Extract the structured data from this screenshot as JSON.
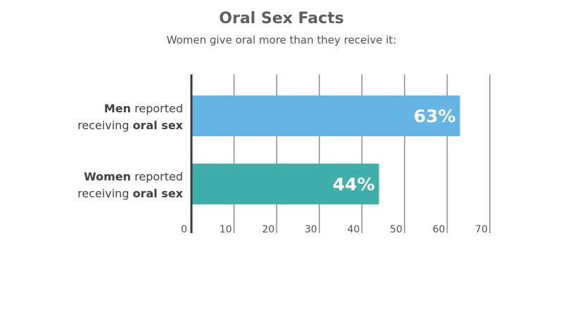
{
  "chart_data": {
    "type": "bar",
    "orientation": "horizontal",
    "title": "Oral Sex Facts",
    "subtitle": "Women give oral more than they receive it:",
    "categories": [
      {
        "segments": [
          {
            "text": "Men",
            "bold": true
          },
          {
            "text": " reported",
            "bold": false
          },
          {
            "text": "receiving ",
            "bold": false,
            "newline": true
          },
          {
            "text": "oral sex",
            "bold": true
          }
        ]
      },
      {
        "segments": [
          {
            "text": "Women",
            "bold": true
          },
          {
            "text": " reported",
            "bold": false
          },
          {
            "text": "receiving ",
            "bold": false,
            "newline": true
          },
          {
            "text": "oral sex",
            "bold": true
          }
        ]
      }
    ],
    "values": [
      63,
      44
    ],
    "value_labels": [
      "63%",
      "44%"
    ],
    "bar_colors": [
      "#64b5e3",
      "#3fafaa"
    ],
    "xlim": [
      0,
      70
    ],
    "xticks": [
      0,
      10,
      20,
      30,
      40,
      50,
      60,
      70
    ],
    "xtick_labels": [
      "0",
      "10",
      "20",
      "30",
      "40",
      "50",
      "60",
      "70"
    ],
    "grid": true,
    "xlabel": "",
    "ylabel": ""
  }
}
